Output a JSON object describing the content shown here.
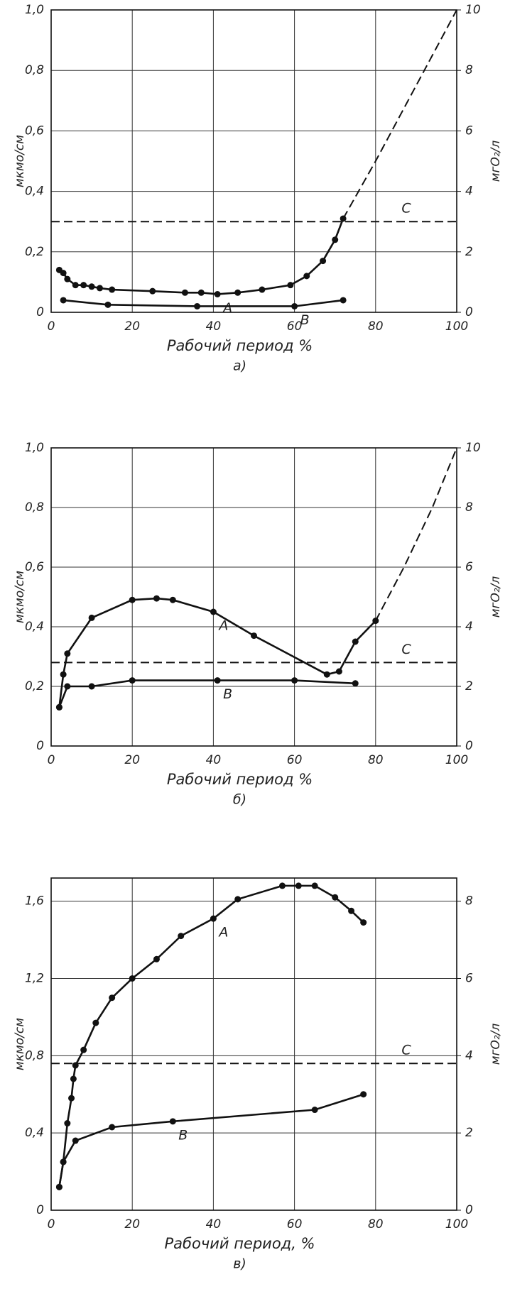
{
  "chart_data": [
    {
      "type": "line",
      "caption": "а)",
      "xlabel": "Рабочий период %",
      "ylabel": "мкмо/см",
      "y2label": "мгO₂/л",
      "xlim": [
        0,
        100
      ],
      "xticks": [
        0,
        20,
        40,
        60,
        80,
        100
      ],
      "ylim": [
        0,
        1.0
      ],
      "yticks": [
        0,
        {
          "value": 0.2,
          "label": "0,2"
        },
        {
          "value": 0.4,
          "label": "0,4"
        },
        {
          "value": 0.6,
          "label": "0,6"
        },
        {
          "value": 0.8,
          "label": "0,8"
        },
        {
          "value": 1.0,
          "label": "1,0"
        }
      ],
      "y2lim": [
        0,
        10
      ],
      "y2ticks": [
        0,
        2,
        4,
        6,
        8,
        10
      ],
      "grid": true,
      "series": [
        {
          "name": "A",
          "color": "#111",
          "marker": true,
          "style": "solid",
          "x": [
            2,
            3,
            4,
            6,
            8,
            10,
            12,
            15,
            25,
            33,
            37,
            41,
            46,
            52,
            59,
            63,
            67,
            70,
            72
          ],
          "values": [
            0.14,
            0.13,
            0.11,
            0.09,
            0.09,
            0.085,
            0.08,
            0.075,
            0.07,
            0.065,
            0.065,
            0.06,
            0.065,
            0.075,
            0.09,
            0.12,
            0.17,
            0.24,
            0.31
          ]
        },
        {
          "color": "#111",
          "marker": false,
          "style": "dashed",
          "x": [
            72,
            80,
            90,
            100
          ],
          "values": [
            0.31,
            0.5,
            0.75,
            1.0
          ]
        },
        {
          "name": "B",
          "color": "#111",
          "marker": true,
          "style": "solid",
          "x": [
            3,
            14,
            36,
            60,
            72
          ],
          "values": [
            0.04,
            0.025,
            0.02,
            0.02,
            0.04
          ]
        },
        {
          "name": "C",
          "color": "#111",
          "marker": false,
          "style": "dashed",
          "x": [
            0,
            100
          ],
          "values": [
            0.3,
            0.3
          ]
        }
      ]
    },
    {
      "type": "line",
      "caption": "б)",
      "xlabel": "Рабочий период %",
      "ylabel": "мкмо/см",
      "y2label": "мгO₂/л",
      "xlim": [
        0,
        100
      ],
      "xticks": [
        0,
        20,
        40,
        60,
        80,
        100
      ],
      "ylim": [
        0,
        1.0
      ],
      "yticks": [
        0,
        {
          "value": 0.2,
          "label": "0,2"
        },
        {
          "value": 0.4,
          "label": "0,4"
        },
        {
          "value": 0.6,
          "label": "0,6"
        },
        {
          "value": 0.8,
          "label": "0,8"
        },
        {
          "value": 1.0,
          "label": "1,0"
        }
      ],
      "y2lim": [
        0,
        10
      ],
      "y2ticks": [
        0,
        2,
        4,
        6,
        8,
        10
      ],
      "grid": true,
      "series": [
        {
          "name": "A",
          "color": "#111",
          "marker": true,
          "style": "solid",
          "x": [
            2,
            3,
            4,
            10,
            20,
            26,
            30,
            40,
            50,
            68,
            71,
            75,
            80
          ],
          "values": [
            0.13,
            0.24,
            0.31,
            0.43,
            0.49,
            0.495,
            0.49,
            0.45,
            0.37,
            0.24,
            0.25,
            0.35,
            0.42
          ]
        },
        {
          "color": "#111",
          "marker": false,
          "style": "dashed",
          "x": [
            80,
            87,
            94,
            100
          ],
          "values": [
            0.42,
            0.6,
            0.8,
            1.0
          ]
        },
        {
          "name": "B",
          "color": "#111",
          "marker": true,
          "style": "solid",
          "x": [
            2,
            4,
            10,
            20,
            41,
            60,
            75
          ],
          "values": [
            0.13,
            0.2,
            0.2,
            0.22,
            0.22,
            0.22,
            0.21
          ]
        },
        {
          "name": "C",
          "color": "#111",
          "marker": false,
          "style": "dashed",
          "x": [
            0,
            100
          ],
          "values": [
            0.28,
            0.28
          ]
        }
      ]
    },
    {
      "type": "line",
      "caption": "в)",
      "xlabel": "Рабочий период, %",
      "ylabel": "мкмо/см",
      "y2label": "мгO₂/л",
      "xlim": [
        0,
        100
      ],
      "xticks": [
        0,
        20,
        40,
        60,
        80,
        100
      ],
      "ylim": [
        0,
        1.72
      ],
      "yticks": [
        0,
        {
          "value": 0.4,
          "label": "0,4"
        },
        {
          "value": 0.8,
          "label": "0,8"
        },
        {
          "value": 1.2,
          "label": "1,2"
        },
        {
          "value": 1.6,
          "label": "1,6"
        }
      ],
      "y2lim": [
        0,
        8.6
      ],
      "y2ticks": [
        0,
        2,
        4,
        6,
        8
      ],
      "grid": true,
      "series": [
        {
          "name": "A",
          "color": "#111",
          "marker": true,
          "style": "solid",
          "x": [
            2,
            3,
            4,
            5,
            5.5,
            6,
            8,
            11,
            15,
            20,
            26,
            32,
            40,
            46,
            57,
            61,
            65,
            70,
            74,
            77
          ],
          "values": [
            0.12,
            0.25,
            0.45,
            0.58,
            0.68,
            0.75,
            0.83,
            0.97,
            1.1,
            1.2,
            1.3,
            1.42,
            1.51,
            1.61,
            1.68,
            1.68,
            1.68,
            1.62,
            1.55,
            1.49
          ]
        },
        {
          "name": "B",
          "color": "#111",
          "marker": true,
          "style": "solid",
          "x": [
            2,
            3,
            6,
            15,
            30,
            65,
            77
          ],
          "values": [
            0.12,
            0.25,
            0.36,
            0.43,
            0.46,
            0.52,
            0.6
          ]
        },
        {
          "name": "C",
          "color": "#111",
          "marker": false,
          "style": "dashed",
          "x": [
            0,
            100
          ],
          "values": [
            0.76,
            0.76
          ]
        }
      ]
    }
  ]
}
